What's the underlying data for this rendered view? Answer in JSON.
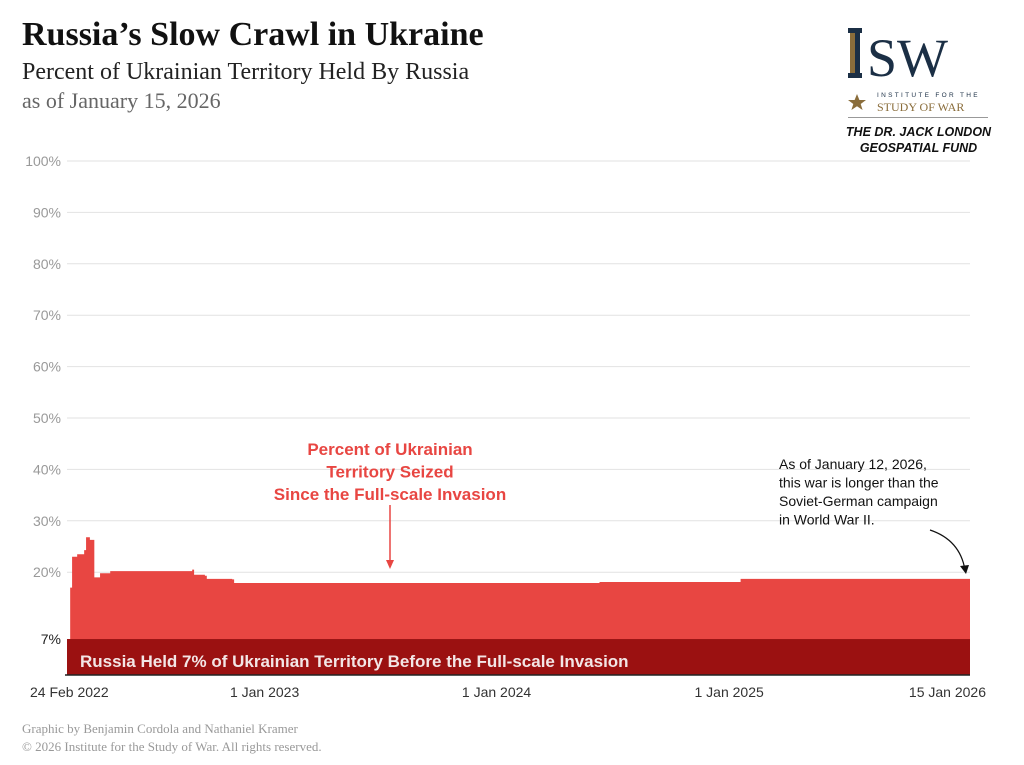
{
  "header": {
    "title": "Russia’s Slow Crawl in Ukraine",
    "subtitle": "Percent of Ukrainian Territory Held By Russia",
    "as_of": "as of January 15, 2026"
  },
  "logo": {
    "letters": "ISW",
    "line1": "INSTITUTE FOR THE",
    "line2": "STUDY OF WAR",
    "navy": "#1b2f45",
    "gold": "#8a6d3b"
  },
  "fund": {
    "line1": "THE DR. JACK LONDON",
    "line2": "GEOSPATIAL FUND"
  },
  "footer": {
    "credit": "Graphic by Benjamin Cordola and Nathaniel Kramer",
    "copyright": "© 2026 Institute for the Study of War. All rights reserved."
  },
  "chart_data": {
    "type": "area",
    "ylim": [
      0,
      100
    ],
    "y_ticks": [
      {
        "v": 100,
        "label": "100%"
      },
      {
        "v": 90,
        "label": "90%"
      },
      {
        "v": 80,
        "label": "80%"
      },
      {
        "v": 70,
        "label": "70%"
      },
      {
        "v": 60,
        "label": "60%"
      },
      {
        "v": 50,
        "label": "50%"
      },
      {
        "v": 40,
        "label": "40%"
      },
      {
        "v": 30,
        "label": "30%"
      },
      {
        "v": 20,
        "label": "20%"
      },
      {
        "v": 7,
        "label": "7%"
      }
    ],
    "x_ticks": [
      {
        "date": "2022-02-24",
        "label": "24 Feb 2022"
      },
      {
        "date": "2023-01-01",
        "label": "1 Jan 2023"
      },
      {
        "date": "2024-01-01",
        "label": "1 Jan 2024"
      },
      {
        "date": "2025-01-01",
        "label": "1 Jan 2025"
      },
      {
        "date": "2026-01-15",
        "label": "15 Jan 2026"
      }
    ],
    "baseline": {
      "value": 7,
      "label": "Russia Held 7% of Ukrainian Territory Before the Full-scale Invasion",
      "color": "#9b1111"
    },
    "series_color": "#e84642",
    "points": [
      [
        "2022-02-24",
        7
      ],
      [
        "2022-03-01",
        17
      ],
      [
        "2022-03-04",
        23
      ],
      [
        "2022-03-12",
        23.5
      ],
      [
        "2022-03-23",
        24.3
      ],
      [
        "2022-03-26",
        26.8
      ],
      [
        "2022-04-01",
        26.3
      ],
      [
        "2022-04-08",
        19
      ],
      [
        "2022-04-17",
        19.8
      ],
      [
        "2022-05-03",
        20.2
      ],
      [
        "2022-09-09",
        20.5
      ],
      [
        "2022-09-12",
        19.5
      ],
      [
        "2022-09-29",
        19.3
      ],
      [
        "2022-10-02",
        18.7
      ],
      [
        "2022-11-11",
        18.6
      ],
      [
        "2022-11-14",
        17.9
      ],
      [
        "2023-08-01",
        17.9
      ],
      [
        "2024-06-11",
        18.1
      ],
      [
        "2025-01-19",
        18.7
      ],
      [
        "2026-01-15",
        19.3
      ]
    ],
    "annotations": [
      {
        "lines": [
          "Percent of Ukrainian",
          "Territory Seized",
          "Since the Full-scale Invasion"
        ],
        "color": "#e84642"
      },
      {
        "lines": [
          "As of January 12, 2026,",
          "this war is longer than the",
          "Soviet-German campaign",
          "in World War II."
        ],
        "color": "#111111"
      }
    ]
  }
}
